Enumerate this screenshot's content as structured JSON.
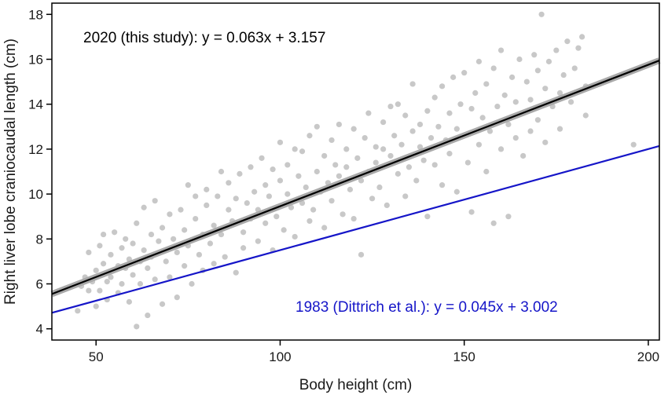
{
  "chart_data": {
    "type": "scatter",
    "title": "",
    "xlabel": "Body height (cm)",
    "ylabel": "Right liver lobe craniocaudal length (cm)",
    "xlim": [
      38,
      203
    ],
    "ylim": [
      3.5,
      18.5
    ],
    "x_ticks": [
      50,
      100,
      150,
      200
    ],
    "y_ticks": [
      4,
      6,
      8,
      10,
      12,
      14,
      16,
      18
    ],
    "grid": false,
    "point_color": "#c8c8c8",
    "points": [
      [
        45,
        4.8
      ],
      [
        46,
        5.9
      ],
      [
        47,
        6.3
      ],
      [
        48,
        5.7
      ],
      [
        48,
        7.4
      ],
      [
        49,
        6.1
      ],
      [
        50,
        6.6
      ],
      [
        50,
        5.0
      ],
      [
        51,
        7.7
      ],
      [
        51,
        5.7
      ],
      [
        52,
        6.9
      ],
      [
        52,
        8.2
      ],
      [
        53,
        6.1
      ],
      [
        53,
        5.3
      ],
      [
        54,
        7.3
      ],
      [
        54,
        6.3
      ],
      [
        55,
        8.3
      ],
      [
        56,
        6.8
      ],
      [
        56,
        5.6
      ],
      [
        57,
        7.6
      ],
      [
        57,
        6.0
      ],
      [
        58,
        6.7
      ],
      [
        58,
        8.0
      ],
      [
        59,
        7.1
      ],
      [
        59,
        5.2
      ],
      [
        60,
        7.8
      ],
      [
        60,
        6.4
      ],
      [
        61,
        4.1
      ],
      [
        61,
        8.7
      ],
      [
        62,
        7.0
      ],
      [
        62,
        6.0
      ],
      [
        63,
        7.5
      ],
      [
        63,
        9.4
      ],
      [
        64,
        4.6
      ],
      [
        64,
        6.7
      ],
      [
        65,
        8.2
      ],
      [
        65,
        7.2
      ],
      [
        66,
        6.2
      ],
      [
        66,
        9.7
      ],
      [
        67,
        7.9
      ],
      [
        68,
        5.1
      ],
      [
        68,
        8.5
      ],
      [
        69,
        7.0
      ],
      [
        70,
        9.1
      ],
      [
        70,
        6.3
      ],
      [
        71,
        8.0
      ],
      [
        72,
        7.4
      ],
      [
        72,
        5.4
      ],
      [
        73,
        9.3
      ],
      [
        74,
        8.4
      ],
      [
        74,
        6.8
      ],
      [
        75,
        10.4
      ],
      [
        75,
        7.7
      ],
      [
        76,
        6.0
      ],
      [
        77,
        8.9
      ],
      [
        77,
        9.9
      ],
      [
        78,
        7.3
      ],
      [
        79,
        8.2
      ],
      [
        79,
        6.6
      ],
      [
        80,
        9.5
      ],
      [
        80,
        10.2
      ],
      [
        81,
        7.8
      ],
      [
        82,
        8.6
      ],
      [
        82,
        6.9
      ],
      [
        83,
        9.9
      ],
      [
        84,
        8.2
      ],
      [
        84,
        11.0
      ],
      [
        85,
        7.2
      ],
      [
        86,
        9.3
      ],
      [
        86,
        10.5
      ],
      [
        87,
        8.8
      ],
      [
        88,
        6.5
      ],
      [
        88,
        9.8
      ],
      [
        89,
        10.9
      ],
      [
        90,
        8.3
      ],
      [
        90,
        7.6
      ],
      [
        91,
        9.6
      ],
      [
        92,
        11.2
      ],
      [
        92,
        8.9
      ],
      [
        93,
        10.1
      ],
      [
        94,
        7.9
      ],
      [
        94,
        9.3
      ],
      [
        95,
        11.6
      ],
      [
        96,
        8.7
      ],
      [
        96,
        10.4
      ],
      [
        97,
        9.9
      ],
      [
        98,
        7.5
      ],
      [
        98,
        11.1
      ],
      [
        99,
        9.0
      ],
      [
        100,
        10.6
      ],
      [
        100,
        12.3
      ],
      [
        101,
        8.4
      ],
      [
        102,
        10.0
      ],
      [
        102,
        11.3
      ],
      [
        103,
        9.4
      ],
      [
        104,
        12.0
      ],
      [
        104,
        8.1
      ],
      [
        105,
        10.8
      ],
      [
        106,
        9.6
      ],
      [
        106,
        11.9
      ],
      [
        107,
        10.3
      ],
      [
        108,
        12.6
      ],
      [
        108,
        8.8
      ],
      [
        109,
        9.3
      ],
      [
        110,
        11.0
      ],
      [
        110,
        13.0
      ],
      [
        111,
        10.1
      ],
      [
        112,
        8.5
      ],
      [
        112,
        11.7
      ],
      [
        113,
        10.5
      ],
      [
        114,
        12.4
      ],
      [
        114,
        9.7
      ],
      [
        115,
        11.3
      ],
      [
        116,
        13.1
      ],
      [
        116,
        10.8
      ],
      [
        117,
        9.1
      ],
      [
        118,
        12.0
      ],
      [
        118,
        11.2
      ],
      [
        119,
        10.2
      ],
      [
        120,
        12.9
      ],
      [
        120,
        8.9
      ],
      [
        121,
        11.6
      ],
      [
        122,
        7.3
      ],
      [
        122,
        10.6
      ],
      [
        123,
        12.5
      ],
      [
        124,
        11.0
      ],
      [
        124,
        13.6
      ],
      [
        125,
        9.8
      ],
      [
        126,
        12.1
      ],
      [
        126,
        11.4
      ],
      [
        127,
        10.3
      ],
      [
        128,
        13.2
      ],
      [
        128,
        12.0
      ],
      [
        129,
        9.5
      ],
      [
        130,
        11.7
      ],
      [
        130,
        13.9
      ],
      [
        131,
        12.6
      ],
      [
        132,
        10.9
      ],
      [
        132,
        14.0
      ],
      [
        133,
        12.2
      ],
      [
        134,
        9.9
      ],
      [
        134,
        13.5
      ],
      [
        135,
        11.2
      ],
      [
        136,
        12.8
      ],
      [
        136,
        14.9
      ],
      [
        137,
        10.6
      ],
      [
        138,
        13.1
      ],
      [
        138,
        12.1
      ],
      [
        139,
        11.5
      ],
      [
        140,
        13.7
      ],
      [
        140,
        9.0
      ],
      [
        141,
        12.5
      ],
      [
        142,
        14.3
      ],
      [
        142,
        11.3
      ],
      [
        143,
        13.0
      ],
      [
        144,
        10.4
      ],
      [
        144,
        14.8
      ],
      [
        145,
        12.4
      ],
      [
        146,
        13.6
      ],
      [
        146,
        11.8
      ],
      [
        147,
        15.2
      ],
      [
        148,
        12.9
      ],
      [
        148,
        10.1
      ],
      [
        149,
        14.0
      ],
      [
        150,
        12.6
      ],
      [
        150,
        15.4
      ],
      [
        151,
        11.4
      ],
      [
        152,
        13.8
      ],
      [
        152,
        9.2
      ],
      [
        153,
        14.5
      ],
      [
        154,
        12.2
      ],
      [
        154,
        15.9
      ],
      [
        155,
        13.4
      ],
      [
        156,
        11.0
      ],
      [
        156,
        14.9
      ],
      [
        157,
        12.8
      ],
      [
        158,
        15.6
      ],
      [
        158,
        8.7
      ],
      [
        159,
        13.9
      ],
      [
        160,
        12.0
      ],
      [
        160,
        16.4
      ],
      [
        161,
        14.4
      ],
      [
        162,
        13.1
      ],
      [
        162,
        9.0
      ],
      [
        163,
        15.2
      ],
      [
        164,
        12.5
      ],
      [
        164,
        14.1
      ],
      [
        165,
        16.0
      ],
      [
        166,
        13.6
      ],
      [
        166,
        11.7
      ],
      [
        167,
        15.0
      ],
      [
        168,
        14.2
      ],
      [
        168,
        12.8
      ],
      [
        169,
        16.2
      ],
      [
        170,
        13.3
      ],
      [
        170,
        15.5
      ],
      [
        171,
        18.0
      ],
      [
        172,
        14.7
      ],
      [
        172,
        12.3
      ],
      [
        173,
        15.9
      ],
      [
        174,
        13.9
      ],
      [
        175,
        16.4
      ],
      [
        176,
        14.5
      ],
      [
        176,
        12.9
      ],
      [
        177,
        15.3
      ],
      [
        178,
        16.8
      ],
      [
        179,
        14.1
      ],
      [
        180,
        15.6
      ],
      [
        181,
        16.5
      ],
      [
        182,
        17.0
      ],
      [
        183,
        14.8
      ],
      [
        183,
        13.5
      ],
      [
        196,
        12.2
      ]
    ],
    "series": [
      {
        "name": "2020 (this study)",
        "type": "line",
        "slope": 0.063,
        "intercept": 3.157,
        "color": "#000000",
        "band_color": "#a9a9a9",
        "label": "2020 (this study): y = 0.063x + 3.157"
      },
      {
        "name": "1983 (Dittrich et al.)",
        "type": "line",
        "slope": 0.045,
        "intercept": 3.002,
        "color": "#1515c8",
        "label": "1983 (Dittrich et al.): y = 0.045x + 3.002"
      }
    ],
    "annotations": [
      {
        "text": "2020 (this study): y = 0.063x + 3.157",
        "color": "#000000",
        "position": "top-left"
      },
      {
        "text": "1983 (Dittrich et al.): y = 0.045x + 3.002",
        "color": "#1515c8",
        "position": "bottom-right"
      }
    ]
  }
}
